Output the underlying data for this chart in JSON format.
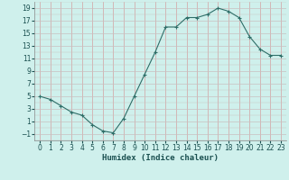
{
  "x": [
    0,
    1,
    2,
    3,
    4,
    5,
    6,
    7,
    8,
    9,
    10,
    11,
    12,
    13,
    14,
    15,
    16,
    17,
    18,
    19,
    20,
    21,
    22,
    23
  ],
  "y": [
    5,
    4.5,
    3.5,
    2.5,
    2,
    0.5,
    -0.5,
    -0.8,
    1.5,
    5,
    8.5,
    12,
    16,
    16,
    17.5,
    17.5,
    18,
    19,
    18.5,
    17.5,
    14.5,
    12.5,
    11.5,
    11.5
  ],
  "line_color": "#2e6e68",
  "marker": "+",
  "marker_color": "#2e6e68",
  "bg_color": "#cff0ec",
  "vgrid_color": "#d4a0a0",
  "hgrid_color": "#c8c0c0",
  "xlabel": "Humidex (Indice chaleur)",
  "xlabel_color": "#1a5050",
  "tick_color": "#1a5050",
  "ylim": [
    -2,
    20
  ],
  "xlim": [
    -0.5,
    23.5
  ],
  "yticks": [
    -1,
    1,
    3,
    5,
    7,
    9,
    11,
    13,
    15,
    17,
    19
  ],
  "xticks": [
    0,
    1,
    2,
    3,
    4,
    5,
    6,
    7,
    8,
    9,
    10,
    11,
    12,
    13,
    14,
    15,
    16,
    17,
    18,
    19,
    20,
    21,
    22,
    23
  ],
  "xlabel_fontsize": 6.5,
  "tick_fontsize": 5.5
}
